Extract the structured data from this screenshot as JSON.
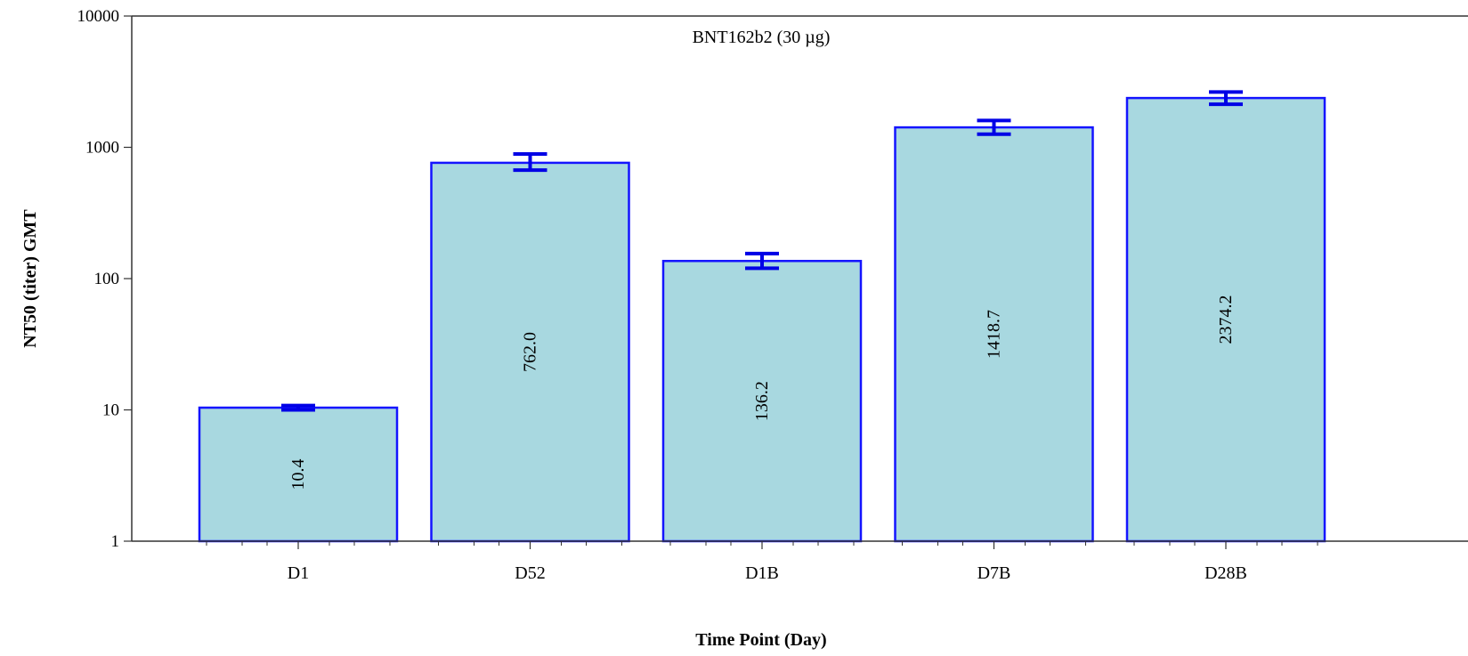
{
  "chart_data": {
    "type": "bar",
    "title": "BNT162b2 (30 µg)",
    "xlabel": "Time Point (Day)",
    "ylabel": "NT50 (titer) GMT",
    "yscale": "log",
    "ylim": [
      1,
      10000
    ],
    "yticks": [
      1,
      10,
      100,
      1000,
      10000
    ],
    "ytick_labels": [
      "1",
      "10",
      "100",
      "1000",
      "10000"
    ],
    "grid": false,
    "categories": [
      "D1",
      "D52",
      "D1B",
      "D7B",
      "D28B"
    ],
    "values": [
      10.4,
      762.0,
      136.2,
      1418.7,
      2374.2
    ],
    "value_labels": [
      "10.4",
      "762.0",
      "136.2",
      "1418.7",
      "2374.2"
    ],
    "error_low": [
      10.0,
      670,
      120,
      1260,
      2130
    ],
    "error_high": [
      10.8,
      890,
      155,
      1600,
      2640
    ],
    "colors": {
      "bar_fill": "#a8d8e0",
      "bar_edge": "#1414ff",
      "error_bar": "#0000e6",
      "axis": "#333333"
    }
  }
}
